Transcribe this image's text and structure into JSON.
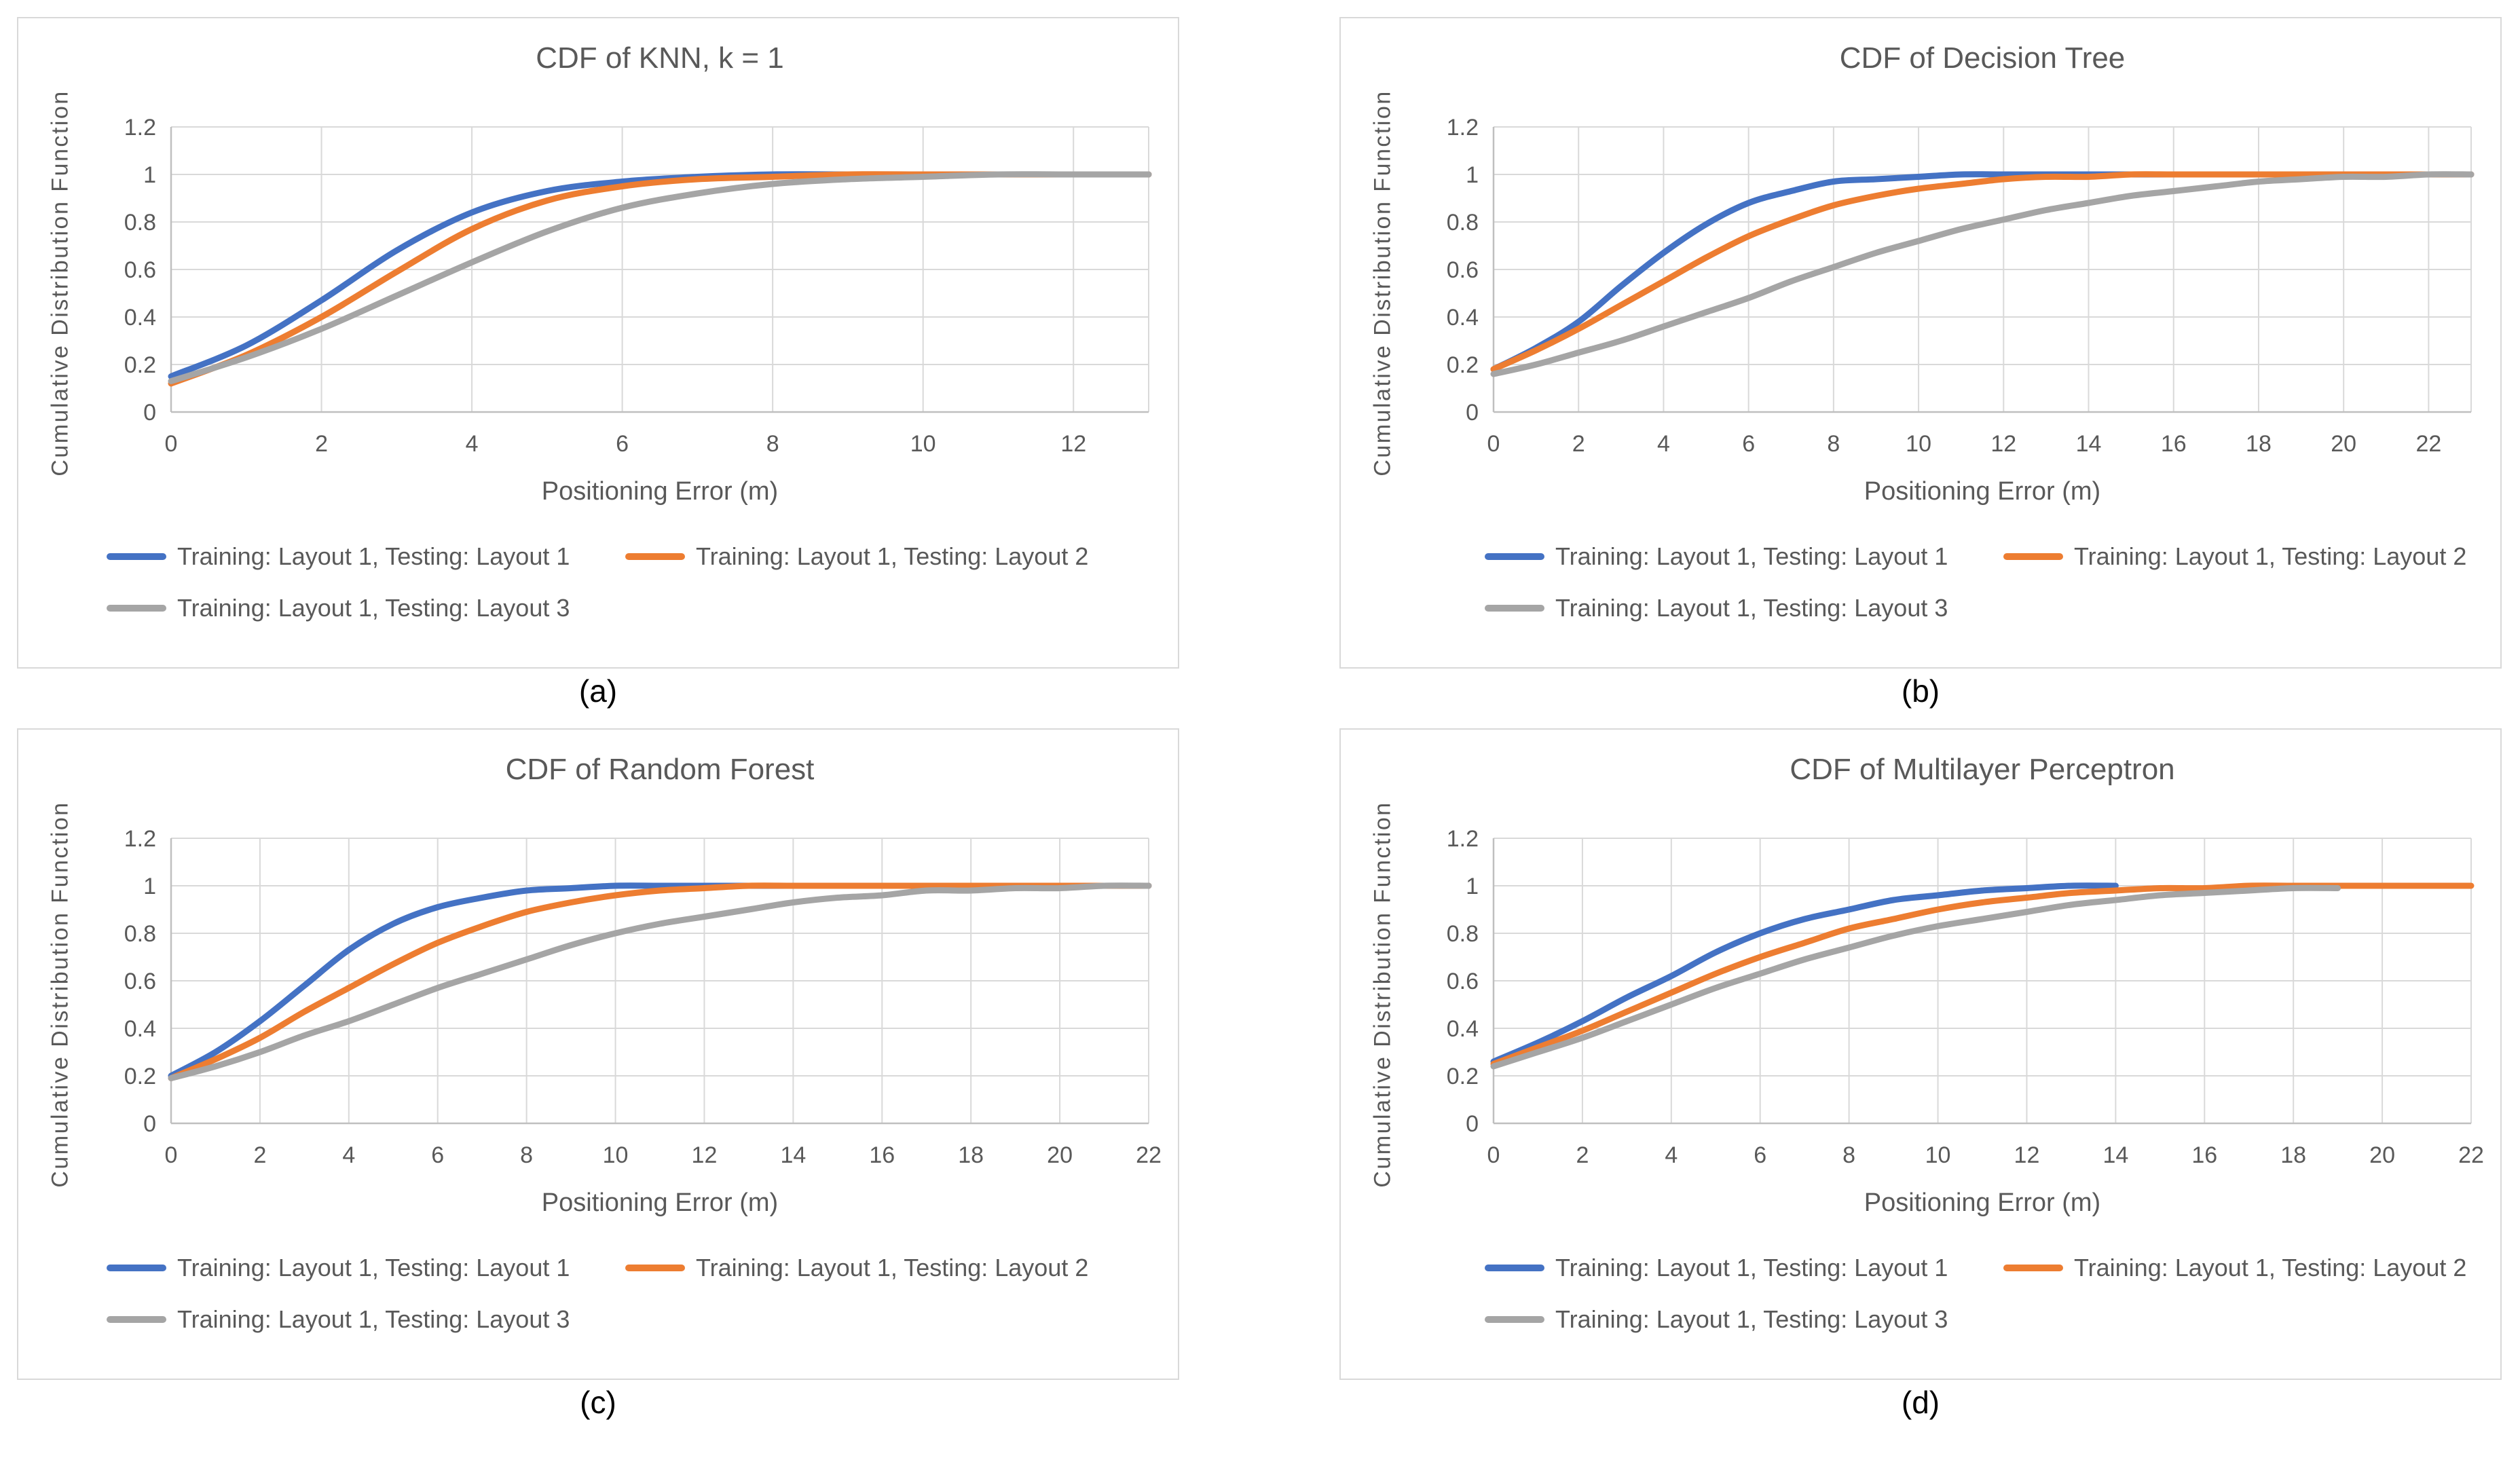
{
  "colors": {
    "blue": "#4472C4",
    "orange": "#ED7D31",
    "gray": "#A5A5A5",
    "axis_text": "#595959",
    "gridline": "#D9D9D9",
    "axis_line": "#BFBFBF",
    "caption_text": "#000000"
  },
  "chart_data": [
    {
      "type": "line",
      "title": "CDF of KNN, k = 1",
      "caption": "(a)",
      "xlabel": "Positioning Error (m)",
      "ylabel": "Cumulative Distribution Function",
      "xlim": [
        0,
        13
      ],
      "ylim": [
        0,
        1.2
      ],
      "xticks": [
        0,
        2,
        4,
        6,
        8,
        10,
        12
      ],
      "yticks": [
        0,
        0.2,
        0.4,
        0.6,
        0.8,
        1,
        1.2
      ],
      "grid": true,
      "legend_position": "bottom",
      "series": [
        {
          "name": "Training: Layout 1, Testing: Layout 1",
          "color_key": "blue",
          "x": [
            0,
            1,
            2,
            3,
            4,
            5,
            6,
            7,
            8,
            9,
            10,
            11,
            12,
            13
          ],
          "y": [
            0.15,
            0.28,
            0.47,
            0.68,
            0.84,
            0.93,
            0.97,
            0.99,
            1,
            1,
            1,
            1,
            1,
            1
          ]
        },
        {
          "name": "Training: Layout 1, Testing: Layout 2",
          "color_key": "orange",
          "x": [
            0,
            1,
            2,
            3,
            4,
            5,
            6,
            7,
            8,
            9,
            10,
            11,
            12,
            13
          ],
          "y": [
            0.12,
            0.24,
            0.4,
            0.59,
            0.77,
            0.89,
            0.95,
            0.98,
            0.99,
            1,
            1,
            1,
            1,
            1
          ]
        },
        {
          "name": "Training: Layout 1, Testing: Layout 3",
          "color_key": "gray",
          "x": [
            0,
            1,
            2,
            3,
            4,
            5,
            6,
            7,
            8,
            9,
            10,
            11,
            12,
            13
          ],
          "y": [
            0.13,
            0.23,
            0.35,
            0.49,
            0.63,
            0.76,
            0.86,
            0.92,
            0.96,
            0.98,
            0.99,
            1,
            1,
            1
          ]
        }
      ]
    },
    {
      "type": "line",
      "title": "CDF of Decision Tree",
      "caption": "(b)",
      "xlabel": "Positioning Error (m)",
      "ylabel": "Cumulative Distribution Function",
      "xlim": [
        0,
        23
      ],
      "ylim": [
        0,
        1.2
      ],
      "xticks": [
        0,
        2,
        4,
        6,
        8,
        10,
        12,
        14,
        16,
        18,
        20,
        22
      ],
      "yticks": [
        0,
        0.2,
        0.4,
        0.6,
        0.8,
        1,
        1.2
      ],
      "grid": true,
      "legend_position": "bottom",
      "series": [
        {
          "name": "Training: Layout 1, Testing: Layout 1",
          "color_key": "blue",
          "x": [
            0,
            1,
            2,
            3,
            4,
            5,
            6,
            7,
            8,
            9,
            10,
            11,
            12,
            13,
            14,
            15,
            16,
            17,
            18,
            19,
            20,
            21,
            22,
            23
          ],
          "y": [
            0.18,
            0.27,
            0.38,
            0.53,
            0.67,
            0.79,
            0.88,
            0.93,
            0.97,
            0.98,
            0.99,
            1,
            1,
            1,
            1,
            1,
            1,
            1,
            1,
            1,
            1,
            1,
            1,
            1
          ]
        },
        {
          "name": "Training: Layout 1, Testing: Layout 2",
          "color_key": "orange",
          "x": [
            0,
            1,
            2,
            3,
            4,
            5,
            6,
            7,
            8,
            9,
            10,
            11,
            12,
            13,
            14,
            15,
            16,
            17,
            18,
            19,
            20,
            21,
            22,
            23
          ],
          "y": [
            0.18,
            0.26,
            0.35,
            0.45,
            0.55,
            0.65,
            0.74,
            0.81,
            0.87,
            0.91,
            0.94,
            0.96,
            0.98,
            0.99,
            0.99,
            1,
            1,
            1,
            1,
            1,
            1,
            1,
            1,
            1
          ]
        },
        {
          "name": "Training: Layout 1, Testing: Layout 3",
          "color_key": "gray",
          "x": [
            0,
            1,
            2,
            3,
            4,
            5,
            6,
            7,
            8,
            9,
            10,
            11,
            12,
            13,
            14,
            15,
            16,
            17,
            18,
            19,
            20,
            21,
            22,
            23
          ],
          "y": [
            0.16,
            0.2,
            0.25,
            0.3,
            0.36,
            0.42,
            0.48,
            0.55,
            0.61,
            0.67,
            0.72,
            0.77,
            0.81,
            0.85,
            0.88,
            0.91,
            0.93,
            0.95,
            0.97,
            0.98,
            0.99,
            0.99,
            1,
            1
          ]
        }
      ]
    },
    {
      "type": "line",
      "title": "CDF of Random Forest",
      "caption": "(c)",
      "xlabel": "Positioning Error (m)",
      "ylabel": "Cumulative Distribution Function",
      "xlim": [
        0,
        22
      ],
      "ylim": [
        0,
        1.2
      ],
      "xticks": [
        0,
        2,
        4,
        6,
        8,
        10,
        12,
        14,
        16,
        18,
        20,
        22
      ],
      "yticks": [
        0,
        0.2,
        0.4,
        0.6,
        0.8,
        1,
        1.2
      ],
      "grid": true,
      "legend_position": "bottom",
      "series": [
        {
          "name": "Training: Layout 1, Testing: Layout 1",
          "color_key": "blue",
          "x": [
            0,
            1,
            2,
            3,
            4,
            5,
            6,
            7,
            8,
            9,
            10,
            11,
            12,
            13,
            14,
            15,
            16,
            17,
            18,
            19,
            20,
            21,
            22
          ],
          "y": [
            0.2,
            0.3,
            0.43,
            0.58,
            0.73,
            0.84,
            0.91,
            0.95,
            0.98,
            0.99,
            1,
            1,
            1,
            1,
            1,
            1,
            1,
            1,
            1,
            1,
            1,
            1,
            1
          ]
        },
        {
          "name": "Training: Layout 1, Testing: Layout 2",
          "color_key": "orange",
          "x": [
            0,
            1,
            2,
            3,
            4,
            5,
            6,
            7,
            8,
            9,
            10,
            11,
            12,
            13,
            14,
            15,
            16,
            17,
            18,
            19,
            20,
            21,
            22
          ],
          "y": [
            0.19,
            0.27,
            0.36,
            0.47,
            0.57,
            0.67,
            0.76,
            0.83,
            0.89,
            0.93,
            0.96,
            0.98,
            0.99,
            1,
            1,
            1,
            1,
            1,
            1,
            1,
            1,
            1,
            1
          ]
        },
        {
          "name": "Training: Layout 1, Testing: Layout 3",
          "color_key": "gray",
          "x": [
            0,
            1,
            2,
            3,
            4,
            5,
            6,
            7,
            8,
            9,
            10,
            11,
            12,
            13,
            14,
            15,
            16,
            17,
            18,
            19,
            20,
            21,
            22
          ],
          "y": [
            0.19,
            0.24,
            0.3,
            0.37,
            0.43,
            0.5,
            0.57,
            0.63,
            0.69,
            0.75,
            0.8,
            0.84,
            0.87,
            0.9,
            0.93,
            0.95,
            0.96,
            0.98,
            0.98,
            0.99,
            0.99,
            1,
            1
          ]
        }
      ]
    },
    {
      "type": "line",
      "title": "CDF of Multilayer Perceptron",
      "caption": "(d)",
      "xlabel": "Positioning Error (m)",
      "ylabel": "Cumulative Distribution Function",
      "xlim": [
        0,
        22
      ],
      "ylim": [
        0,
        1.2
      ],
      "xticks": [
        0,
        2,
        4,
        6,
        8,
        10,
        12,
        14,
        16,
        18,
        20,
        22
      ],
      "yticks": [
        0,
        0.2,
        0.4,
        0.6,
        0.8,
        1,
        1.2
      ],
      "grid": true,
      "legend_position": "bottom",
      "series": [
        {
          "name": "Training: Layout 1, Testing: Layout 1",
          "color_key": "blue",
          "x": [
            0,
            1,
            2,
            3,
            4,
            5,
            6,
            7,
            8,
            9,
            10,
            11,
            12,
            13,
            14
          ],
          "y": [
            0.26,
            0.34,
            0.43,
            0.53,
            0.62,
            0.72,
            0.8,
            0.86,
            0.9,
            0.94,
            0.96,
            0.98,
            0.99,
            1,
            1
          ]
        },
        {
          "name": "Training: Layout 1, Testing: Layout 2",
          "color_key": "orange",
          "x": [
            0,
            1,
            2,
            3,
            4,
            5,
            6,
            7,
            8,
            9,
            10,
            11,
            12,
            13,
            14,
            15,
            16,
            17,
            18,
            19,
            20,
            21,
            22
          ],
          "y": [
            0.25,
            0.32,
            0.39,
            0.47,
            0.55,
            0.63,
            0.7,
            0.76,
            0.82,
            0.86,
            0.9,
            0.93,
            0.95,
            0.97,
            0.98,
            0.99,
            0.99,
            1,
            1,
            1,
            1,
            1,
            1
          ]
        },
        {
          "name": "Training: Layout 1, Testing: Layout 3",
          "color_key": "gray",
          "x": [
            0,
            1,
            2,
            3,
            4,
            5,
            6,
            7,
            8,
            9,
            10,
            11,
            12,
            13,
            14,
            15,
            16,
            17,
            18,
            19
          ],
          "y": [
            0.24,
            0.3,
            0.36,
            0.43,
            0.5,
            0.57,
            0.63,
            0.69,
            0.74,
            0.79,
            0.83,
            0.86,
            0.89,
            0.92,
            0.94,
            0.96,
            0.97,
            0.98,
            0.99,
            0.99
          ]
        }
      ]
    }
  ]
}
